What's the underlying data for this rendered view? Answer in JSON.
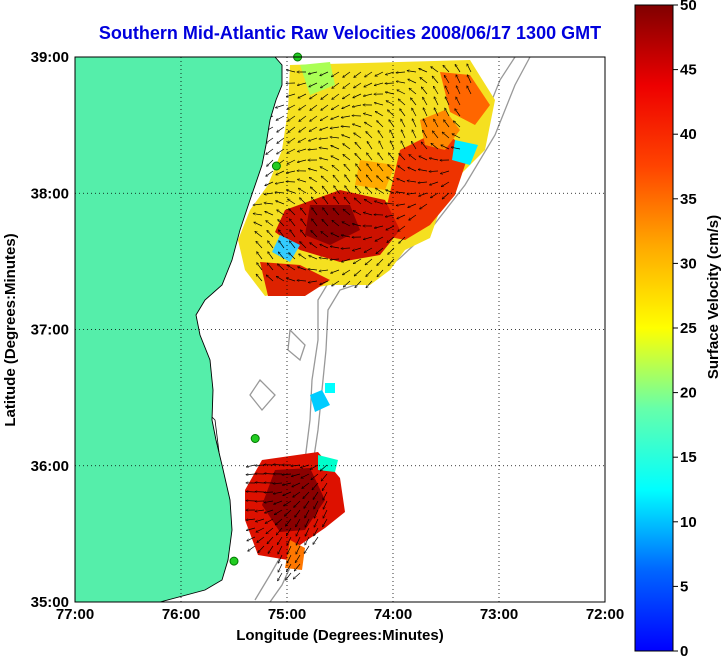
{
  "title": "Southern Mid-Atlantic Raw Velocities 2008/06/17 1300 GMT",
  "xlabel": "Longitude (Degrees:Minutes)",
  "ylabel": "Latitude (Degrees:Minutes)",
  "x_ticks": [
    {
      "label": "77:00",
      "value": -77
    },
    {
      "label": "76:00",
      "value": -76
    },
    {
      "label": "75:00",
      "value": -75
    },
    {
      "label": "74:00",
      "value": -74
    },
    {
      "label": "73:00",
      "value": -73
    },
    {
      "label": "72:00",
      "value": -72
    }
  ],
  "y_ticks": [
    {
      "label": "39:00",
      "value": 39
    },
    {
      "label": "38:00",
      "value": 38
    },
    {
      "label": "37:00",
      "value": 37
    },
    {
      "label": "36:00",
      "value": 36
    },
    {
      "label": "35:00",
      "value": 35
    }
  ],
  "colorbar": {
    "label": "Surface Velocity (cm/s)",
    "min": 0,
    "max": 50,
    "ticks": [
      "0",
      "5",
      "10",
      "15",
      "20",
      "25",
      "30",
      "35",
      "40",
      "45",
      "50"
    ]
  },
  "colors": {
    "land": "#55eeaa",
    "title": "#0000dd",
    "station": "#22cc22",
    "bathymetry": "#999999",
    "grid": "#000000"
  },
  "chart_data": {
    "type": "heatmap",
    "x_range": [
      -77,
      -72
    ],
    "y_range": [
      35,
      39
    ],
    "grid": true,
    "colorscale": "jet",
    "value_range": [
      0,
      50
    ],
    "stations": [
      [
        -74.9,
        39.0
      ],
      [
        -75.1,
        38.2
      ],
      [
        -75.3,
        36.2
      ],
      [
        -75.5,
        35.3
      ]
    ]
  }
}
